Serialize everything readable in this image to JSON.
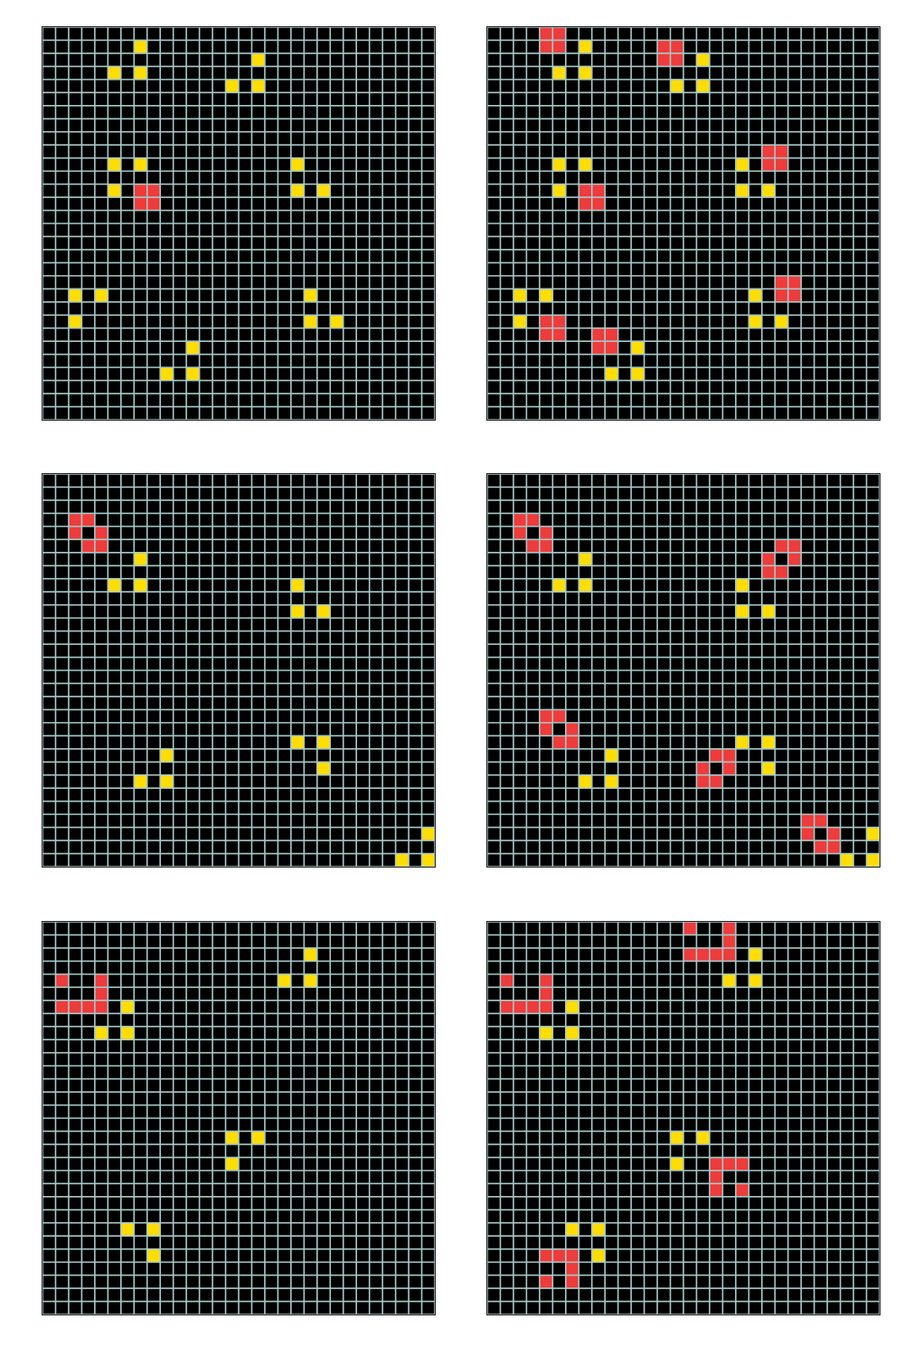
{
  "grid": {
    "rows": 30,
    "cols": 30,
    "colors": {
      "background": "#000000",
      "gridline": "#a8c8c8",
      "yellow": "#ffdd00",
      "red": "#ee3b3b"
    }
  },
  "panels": [
    {
      "id": "example-1-input",
      "yellow": [
        [
          1,
          7
        ],
        [
          3,
          5
        ],
        [
          3,
          7
        ],
        [
          2,
          16
        ],
        [
          4,
          14
        ],
        [
          4,
          16
        ],
        [
          10,
          5
        ],
        [
          10,
          7
        ],
        [
          12,
          5
        ],
        [
          10,
          19
        ],
        [
          12,
          19
        ],
        [
          12,
          21
        ],
        [
          20,
          2
        ],
        [
          20,
          4
        ],
        [
          22,
          2
        ],
        [
          20,
          20
        ],
        [
          22,
          20
        ],
        [
          22,
          22
        ],
        [
          24,
          11
        ],
        [
          26,
          9
        ],
        [
          26,
          11
        ]
      ],
      "red": [
        [
          12,
          7
        ],
        [
          12,
          8
        ],
        [
          13,
          7
        ],
        [
          13,
          8
        ]
      ]
    },
    {
      "id": "example-1-output",
      "yellow": [
        [
          1,
          7
        ],
        [
          3,
          5
        ],
        [
          3,
          7
        ],
        [
          2,
          16
        ],
        [
          4,
          14
        ],
        [
          4,
          16
        ],
        [
          10,
          5
        ],
        [
          10,
          7
        ],
        [
          12,
          5
        ],
        [
          10,
          19
        ],
        [
          12,
          19
        ],
        [
          12,
          21
        ],
        [
          20,
          2
        ],
        [
          20,
          4
        ],
        [
          22,
          2
        ],
        [
          20,
          20
        ],
        [
          22,
          20
        ],
        [
          22,
          22
        ],
        [
          24,
          11
        ],
        [
          26,
          9
        ],
        [
          26,
          11
        ]
      ],
      "red": [
        [
          0,
          4
        ],
        [
          0,
          5
        ],
        [
          1,
          4
        ],
        [
          1,
          5
        ],
        [
          1,
          13
        ],
        [
          1,
          14
        ],
        [
          2,
          13
        ],
        [
          2,
          14
        ],
        [
          9,
          21
        ],
        [
          9,
          22
        ],
        [
          10,
          21
        ],
        [
          10,
          22
        ],
        [
          12,
          7
        ],
        [
          12,
          8
        ],
        [
          13,
          7
        ],
        [
          13,
          8
        ],
        [
          19,
          22
        ],
        [
          19,
          23
        ],
        [
          20,
          22
        ],
        [
          20,
          23
        ],
        [
          22,
          4
        ],
        [
          22,
          5
        ],
        [
          23,
          4
        ],
        [
          23,
          5
        ],
        [
          23,
          8
        ],
        [
          23,
          9
        ],
        [
          24,
          8
        ],
        [
          24,
          9
        ]
      ]
    },
    {
      "id": "example-2-input",
      "yellow": [
        [
          6,
          7
        ],
        [
          8,
          5
        ],
        [
          8,
          7
        ],
        [
          8,
          19
        ],
        [
          10,
          19
        ],
        [
          10,
          21
        ],
        [
          20,
          19
        ],
        [
          20,
          21
        ],
        [
          21,
          9
        ],
        [
          22,
          21
        ],
        [
          23,
          7
        ],
        [
          23,
          9
        ],
        [
          27,
          29
        ],
        [
          29,
          27
        ],
        [
          29,
          29
        ]
      ],
      "red": [
        [
          3,
          2
        ],
        [
          3,
          3
        ],
        [
          4,
          2
        ],
        [
          4,
          4
        ],
        [
          5,
          3
        ],
        [
          5,
          4
        ]
      ]
    },
    {
      "id": "example-2-output",
      "yellow": [
        [
          6,
          7
        ],
        [
          8,
          5
        ],
        [
          8,
          7
        ],
        [
          8,
          19
        ],
        [
          10,
          19
        ],
        [
          10,
          21
        ],
        [
          20,
          19
        ],
        [
          20,
          21
        ],
        [
          21,
          9
        ],
        [
          22,
          21
        ],
        [
          23,
          7
        ],
        [
          23,
          9
        ],
        [
          27,
          29
        ],
        [
          29,
          27
        ],
        [
          29,
          29
        ]
      ],
      "red": [
        [
          3,
          2
        ],
        [
          3,
          3
        ],
        [
          4,
          2
        ],
        [
          4,
          4
        ],
        [
          5,
          3
        ],
        [
          5,
          4
        ],
        [
          5,
          22
        ],
        [
          5,
          23
        ],
        [
          6,
          21
        ],
        [
          6,
          23
        ],
        [
          7,
          21
        ],
        [
          7,
          22
        ],
        [
          18,
          4
        ],
        [
          18,
          5
        ],
        [
          19,
          4
        ],
        [
          19,
          6
        ],
        [
          20,
          5
        ],
        [
          20,
          6
        ],
        [
          21,
          17
        ],
        [
          21,
          18
        ],
        [
          22,
          16
        ],
        [
          22,
          18
        ],
        [
          23,
          16
        ],
        [
          23,
          17
        ],
        [
          26,
          24
        ],
        [
          26,
          25
        ],
        [
          27,
          24
        ],
        [
          27,
          26
        ],
        [
          28,
          25
        ],
        [
          28,
          26
        ]
      ]
    },
    {
      "id": "test-input",
      "yellow": [
        [
          2,
          20
        ],
        [
          4,
          18
        ],
        [
          4,
          20
        ],
        [
          6,
          6
        ],
        [
          8,
          4
        ],
        [
          8,
          6
        ],
        [
          16,
          14
        ],
        [
          16,
          16
        ],
        [
          18,
          14
        ],
        [
          23,
          6
        ],
        [
          23,
          8
        ],
        [
          25,
          8
        ]
      ],
      "red": [
        [
          4,
          1
        ],
        [
          4,
          4
        ],
        [
          5,
          4
        ],
        [
          6,
          1
        ],
        [
          6,
          2
        ],
        [
          6,
          3
        ],
        [
          6,
          4
        ]
      ]
    },
    {
      "id": "test-output",
      "yellow": [
        [
          6,
          6
        ],
        [
          8,
          4
        ],
        [
          8,
          6
        ],
        [
          2,
          20
        ],
        [
          4,
          18
        ],
        [
          4,
          20
        ],
        [
          16,
          14
        ],
        [
          16,
          16
        ],
        [
          18,
          14
        ],
        [
          23,
          6
        ],
        [
          23,
          8
        ],
        [
          25,
          8
        ]
      ],
      "red": [
        [
          4,
          1
        ],
        [
          4,
          4
        ],
        [
          5,
          4
        ],
        [
          6,
          1
        ],
        [
          6,
          2
        ],
        [
          6,
          3
        ],
        [
          6,
          4
        ],
        [
          0,
          15
        ],
        [
          0,
          18
        ],
        [
          1,
          18
        ],
        [
          2,
          15
        ],
        [
          2,
          16
        ],
        [
          2,
          17
        ],
        [
          2,
          18
        ],
        [
          18,
          17
        ],
        [
          18,
          18
        ],
        [
          18,
          19
        ],
        [
          19,
          17
        ],
        [
          20,
          17
        ],
        [
          20,
          19
        ],
        [
          25,
          4
        ],
        [
          25,
          5
        ],
        [
          25,
          6
        ],
        [
          26,
          6
        ],
        [
          27,
          4
        ],
        [
          27,
          6
        ]
      ]
    }
  ]
}
